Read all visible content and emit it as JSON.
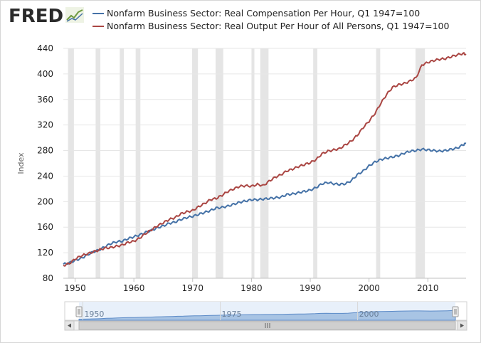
{
  "brand": {
    "name": "FRED",
    "logo_icon": "fred-logo-chart-icon"
  },
  "colors": {
    "series1": "#4572a7",
    "series2": "#aa4643",
    "recession": "#e5e5e5",
    "grid": "#e6e6e6",
    "navigator_fill": "#a8c4e4",
    "navigator_line": "#5b8ac7"
  },
  "chart_data": {
    "type": "line",
    "title": "",
    "ylabel": "Index",
    "xlabel": "",
    "xlim": [
      1948,
      2016.5
    ],
    "ylim": [
      80,
      440
    ],
    "yticks": [
      80,
      120,
      160,
      200,
      240,
      280,
      320,
      360,
      400,
      440
    ],
    "xticks": [
      1950,
      1960,
      1970,
      1980,
      1990,
      2000,
      2010
    ],
    "recessions": [
      [
        1948.8,
        1949.8
      ],
      [
        1953.5,
        1954.3
      ],
      [
        1957.6,
        1958.3
      ],
      [
        1960.3,
        1961.1
      ],
      [
        1969.9,
        1970.9
      ],
      [
        1973.9,
        1975.2
      ],
      [
        1980.0,
        1980.5
      ],
      [
        1981.5,
        1982.9
      ],
      [
        1990.5,
        1991.2
      ],
      [
        2001.2,
        2001.9
      ],
      [
        2007.9,
        2009.5
      ]
    ],
    "series": [
      {
        "name": "Nonfarm Business Sector: Real Compensation Per Hour, Q1 1947=100",
        "x": [
          1948,
          1949,
          1950,
          1951,
          1952,
          1953,
          1954,
          1955,
          1956,
          1957,
          1958,
          1959,
          1960,
          1961,
          1962,
          1963,
          1964,
          1965,
          1966,
          1967,
          1968,
          1969,
          1970,
          1971,
          1972,
          1973,
          1974,
          1975,
          1976,
          1977,
          1978,
          1979,
          1980,
          1981,
          1982,
          1983,
          1984,
          1985,
          1986,
          1987,
          1988,
          1989,
          1990,
          1991,
          1992,
          1993,
          1994,
          1995,
          1996,
          1997,
          1998,
          1999,
          2000,
          2001,
          2002,
          2003,
          2004,
          2005,
          2006,
          2007,
          2008,
          2009,
          2010,
          2011,
          2012,
          2013,
          2014,
          2015,
          2016,
          2016.5
        ],
        "values": [
          102,
          104,
          108,
          111,
          116,
          121,
          124,
          129,
          134,
          137,
          138,
          142,
          145,
          148,
          152,
          155,
          159,
          162,
          166,
          168,
          172,
          175,
          177,
          180,
          183,
          186,
          190,
          191,
          193,
          196,
          199,
          201,
          203,
          203,
          204,
          205,
          206,
          207,
          211,
          212,
          214,
          216,
          218,
          222,
          228,
          230,
          228,
          227,
          228,
          233,
          242,
          248,
          256,
          262,
          266,
          268,
          270,
          272,
          276,
          279,
          280,
          282,
          281,
          280,
          279,
          280,
          282,
          284,
          289,
          291
        ]
      },
      {
        "name": "Nonfarm Business Sector: Real Output Per Hour of All Persons, Q1 1947=100",
        "x": [
          1948,
          1949,
          1950,
          1951,
          1952,
          1953,
          1954,
          1955,
          1956,
          1957,
          1958,
          1959,
          1960,
          1961,
          1962,
          1963,
          1964,
          1965,
          1966,
          1967,
          1968,
          1969,
          1970,
          1971,
          1972,
          1973,
          1974,
          1975,
          1976,
          1977,
          1978,
          1979,
          1980,
          1981,
          1982,
          1983,
          1984,
          1985,
          1986,
          1987,
          1988,
          1989,
          1990,
          1991,
          1992,
          1993,
          1994,
          1995,
          1996,
          1997,
          1998,
          1999,
          2000,
          2001,
          2002,
          2003,
          2004,
          2005,
          2006,
          2007,
          2008,
          2009,
          2010,
          2011,
          2012,
          2013,
          2014,
          2015,
          2016,
          2016.5
        ],
        "values": [
          100,
          103,
          110,
          115,
          118,
          121,
          124,
          127,
          128,
          130,
          132,
          136,
          138,
          143,
          150,
          156,
          162,
          167,
          172,
          175,
          181,
          184,
          186,
          192,
          197,
          203,
          205,
          210,
          216,
          220,
          224,
          225,
          224,
          227,
          225,
          232,
          238,
          242,
          248,
          251,
          255,
          258,
          261,
          266,
          275,
          279,
          281,
          283,
          289,
          295,
          304,
          316,
          326,
          338,
          354,
          368,
          379,
          383,
          385,
          389,
          394,
          414,
          418,
          421,
          423,
          424,
          427,
          430,
          432,
          431
        ]
      }
    ],
    "navigator": {
      "tick_labels": [
        "1950",
        "1975",
        "2000"
      ],
      "tick_years": [
        1950,
        1975,
        2000
      ]
    }
  }
}
